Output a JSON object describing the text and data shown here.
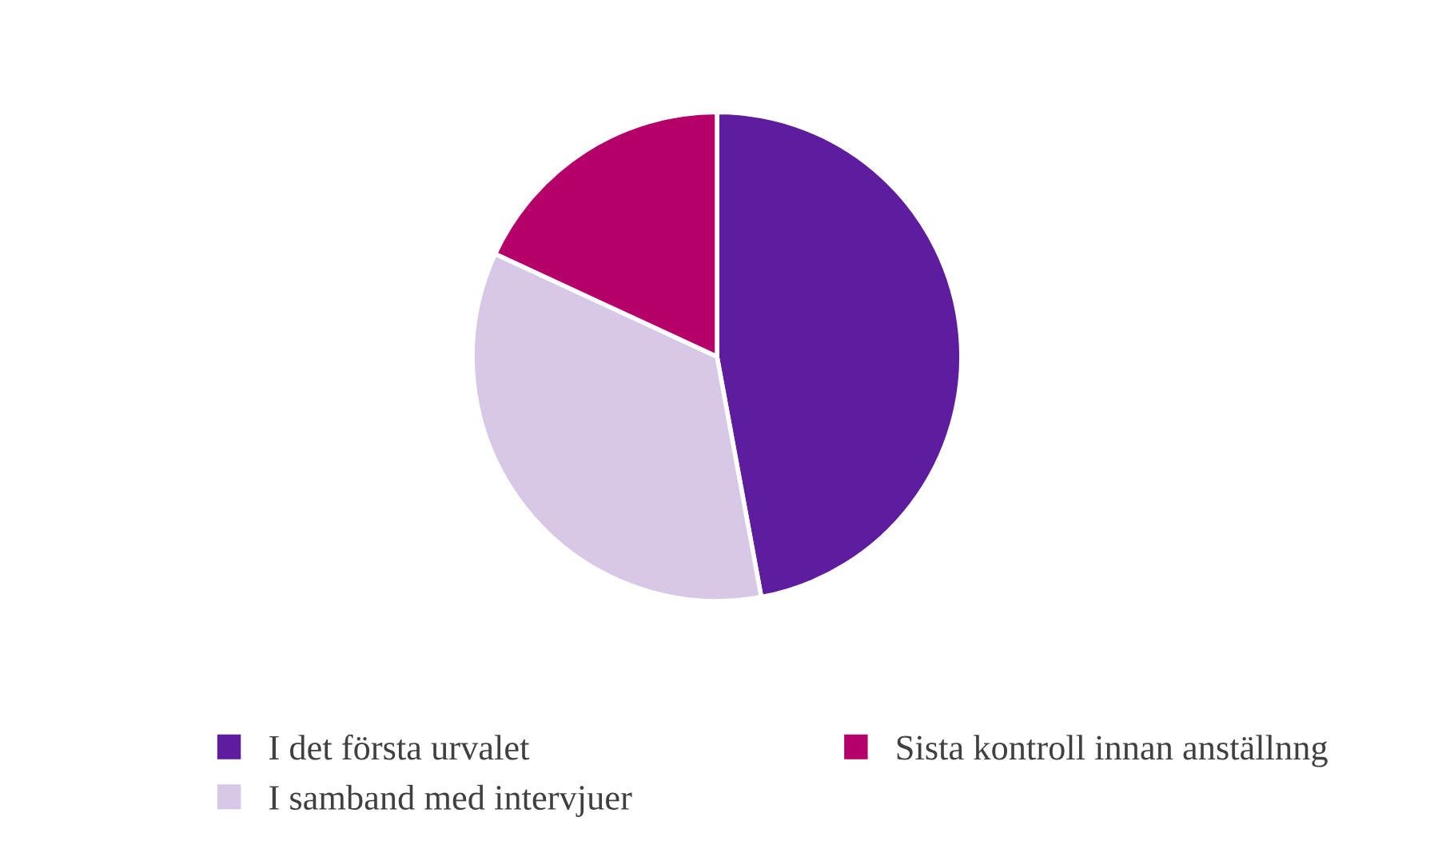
{
  "chart_data": {
    "type": "pie",
    "categories": [
      "I det första urvalet",
      "I samband med intervjuer",
      "Sista kontroll innan anställnng"
    ],
    "values": [
      47.1,
      34.8,
      18.1
    ],
    "colors": [
      "#5e1c9f",
      "#d7c8e7",
      "#b5006a"
    ],
    "legend": "bottom"
  }
}
